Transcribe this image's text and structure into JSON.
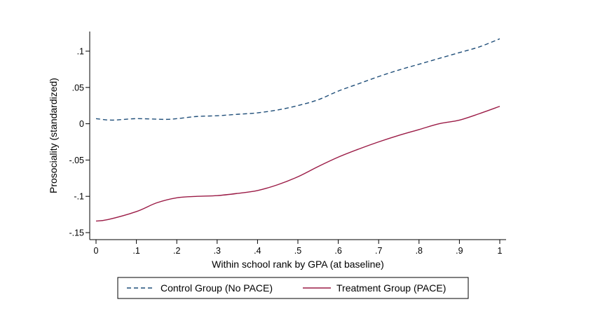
{
  "chart_data": {
    "type": "line",
    "title": "",
    "xlabel": "Within school rank by GPA (at baseline)",
    "ylabel": "Prosociality (standardized)",
    "xlim": [
      0,
      1
    ],
    "ylim": [
      -0.15,
      0.12
    ],
    "xticks": [
      {
        "value": 0,
        "label": "0"
      },
      {
        "value": 0.1,
        "label": ".1"
      },
      {
        "value": 0.2,
        "label": ".2"
      },
      {
        "value": 0.3,
        "label": ".3"
      },
      {
        "value": 0.4,
        "label": ".4"
      },
      {
        "value": 0.5,
        "label": ".5"
      },
      {
        "value": 0.6,
        "label": ".6"
      },
      {
        "value": 0.7,
        "label": ".7"
      },
      {
        "value": 0.8,
        "label": ".8"
      },
      {
        "value": 0.9,
        "label": ".9"
      },
      {
        "value": 1,
        "label": "1"
      }
    ],
    "yticks": [
      {
        "value": 0.1,
        "label": ".1"
      },
      {
        "value": 0.05,
        "label": ".05"
      },
      {
        "value": 0,
        "label": "0"
      },
      {
        "value": -0.05,
        "label": "-.05"
      },
      {
        "value": -0.1,
        "label": "-.1"
      },
      {
        "value": -0.15,
        "label": "-.15"
      }
    ],
    "grid": false,
    "legend_position": "bottom",
    "series": [
      {
        "name": "Control Group (No PACE)",
        "color": "#1f4e79",
        "style": "dashed",
        "x": [
          0.0,
          0.04,
          0.1,
          0.17,
          0.2,
          0.25,
          0.3,
          0.35,
          0.4,
          0.45,
          0.5,
          0.55,
          0.6,
          0.65,
          0.7,
          0.75,
          0.8,
          0.85,
          0.9,
          0.95,
          1.0
        ],
        "y": [
          0.007,
          0.005,
          0.007,
          0.006,
          0.007,
          0.01,
          0.011,
          0.013,
          0.015,
          0.019,
          0.025,
          0.033,
          0.045,
          0.055,
          0.065,
          0.074,
          0.082,
          0.09,
          0.098,
          0.106,
          0.117
        ]
      },
      {
        "name": "Treatment Group (PACE)",
        "color": "#9b1b46",
        "style": "solid",
        "x": [
          0.0,
          0.03,
          0.1,
          0.15,
          0.2,
          0.25,
          0.3,
          0.35,
          0.4,
          0.45,
          0.5,
          0.55,
          0.6,
          0.65,
          0.7,
          0.75,
          0.8,
          0.85,
          0.9,
          0.95,
          1.0
        ],
        "y": [
          -0.134,
          -0.132,
          -0.121,
          -0.109,
          -0.102,
          -0.1,
          -0.099,
          -0.096,
          -0.092,
          -0.084,
          -0.073,
          -0.059,
          -0.046,
          -0.035,
          -0.025,
          -0.016,
          -0.008,
          0.0,
          0.005,
          0.014,
          0.024
        ]
      }
    ]
  }
}
